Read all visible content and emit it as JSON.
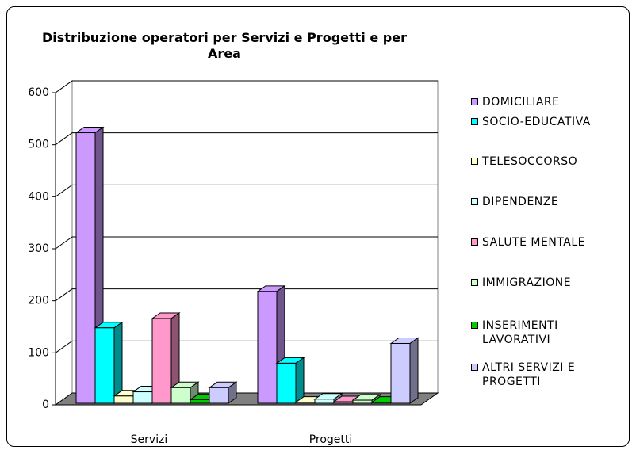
{
  "chart_data": {
    "type": "bar3d",
    "title": "Distribuzione operatori per Servizi e Progetti e per Area",
    "categories": [
      "Servizi",
      "Progetti"
    ],
    "series": [
      {
        "name": "DOMICILIARE",
        "color": "#cc99ff",
        "values": [
          520,
          215
        ]
      },
      {
        "name": "SOCIO-EDUCATIVA",
        "color": "#00ffff",
        "values": [
          145,
          77
        ]
      },
      {
        "name": "TELESOCCORSO",
        "color": "#ffffcc",
        "values": [
          14,
          2
        ]
      },
      {
        "name": "DIPENDENZE",
        "color": "#ccffff",
        "values": [
          22,
          8
        ]
      },
      {
        "name": "SALUTE MENTALE",
        "color": "#ff99cc",
        "values": [
          163,
          3
        ]
      },
      {
        "name": "IMMIGRAZIONE",
        "color": "#ccffcc",
        "values": [
          30,
          6
        ]
      },
      {
        "name": "INSERIMENTI LAVORATIVI",
        "color": "#00cc00",
        "values": [
          7,
          2
        ]
      },
      {
        "name": "ALTRI SERVIZI E PROGETTI",
        "color": "#ccccff",
        "values": [
          30,
          115
        ]
      }
    ],
    "ylim": [
      0,
      600
    ],
    "yticks": [
      0,
      100,
      200,
      300,
      400,
      500,
      600
    ],
    "grid": true,
    "legend": "right"
  }
}
